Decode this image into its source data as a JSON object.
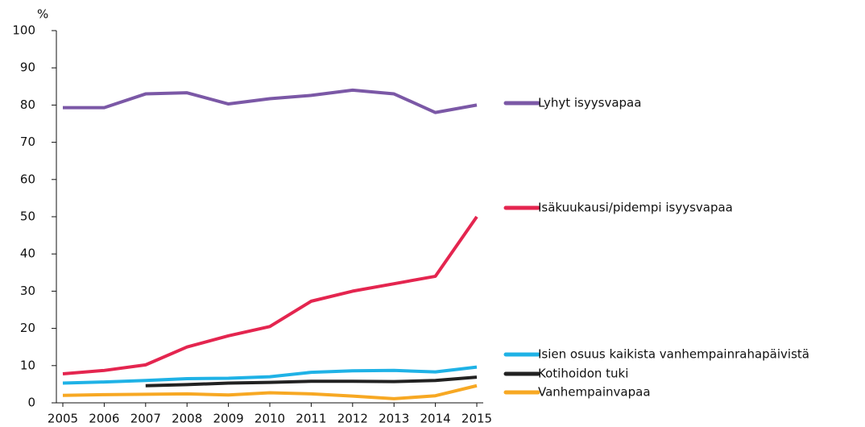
{
  "chart_data": {
    "type": "line",
    "ylabel": "%",
    "x": [
      2005,
      2006,
      2007,
      2008,
      2009,
      2010,
      2011,
      2012,
      2013,
      2014,
      2015
    ],
    "xlim": [
      2005,
      2015
    ],
    "xticks": [
      2005,
      2006,
      2007,
      2008,
      2009,
      2010,
      2011,
      2012,
      2013,
      2014,
      2015
    ],
    "ylim": [
      0,
      100
    ],
    "yticks": [
      0,
      10,
      20,
      30,
      40,
      50,
      60,
      70,
      80,
      90,
      100
    ],
    "grid": false,
    "series": [
      {
        "name": "Lyhyt isyysvapaa",
        "color": "#7b58a6",
        "values": [
          79.3,
          79.3,
          83,
          83.3,
          80.3,
          81.7,
          82.6,
          84,
          83,
          78,
          80
        ]
      },
      {
        "name": "Isäkuukausi/pidempi isyysvapaa",
        "color": "#e4254f",
        "values": [
          7.8,
          8.7,
          10.2,
          15,
          18,
          20.5,
          27.3,
          30,
          32,
          34,
          50
        ]
      },
      {
        "name": "Isien osuus kaikista vanhempainrahapäivistä",
        "color": "#1fb2e6",
        "values": [
          5.3,
          5.6,
          6,
          6.5,
          6.6,
          7,
          8.2,
          8.6,
          8.7,
          8.3,
          9.6
        ]
      },
      {
        "name": "Kotihoidon tuki",
        "color": "#222222",
        "values": [
          null,
          null,
          4.6,
          4.9,
          5.3,
          5.5,
          5.8,
          5.8,
          5.7,
          6,
          6.9
        ]
      },
      {
        "name": "Vanhempainvapaa",
        "color": "#f7a823",
        "values": [
          2,
          2.2,
          2.3,
          2.4,
          2.1,
          2.7,
          2.4,
          1.8,
          1.1,
          1.9,
          4.6
        ]
      }
    ]
  }
}
